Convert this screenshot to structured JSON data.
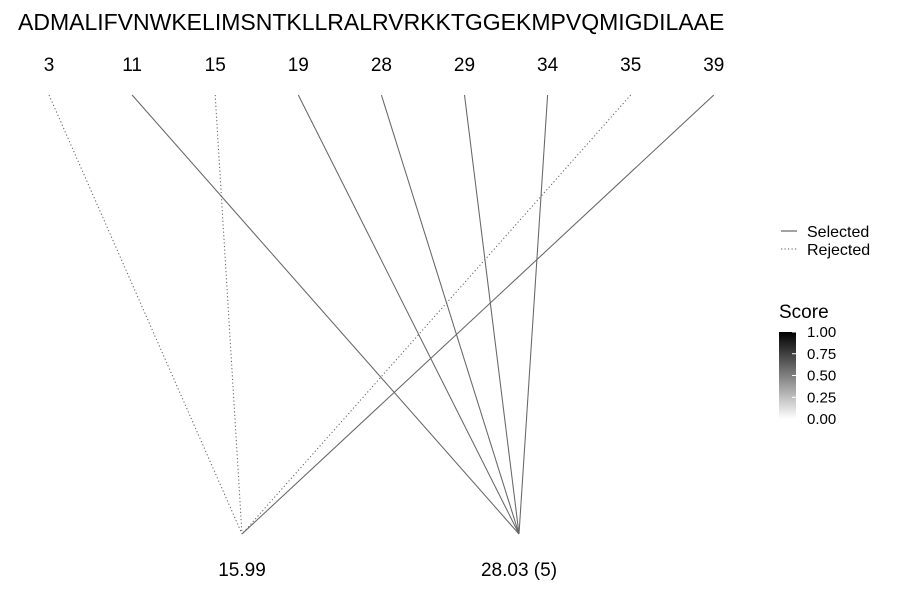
{
  "chart_data": {
    "type": "line",
    "sequence": "ADMALIFVNWKELIMSNTKLLRALRVRKKTGGEKMPVQMIGDILAAE",
    "positions": [
      "3",
      "11",
      "15",
      "19",
      "28",
      "29",
      "34",
      "35",
      "39"
    ],
    "masses": [
      {
        "key": "m1",
        "label": "15.99"
      },
      {
        "key": "m2",
        "label": "28.03 (5)"
      }
    ],
    "links": [
      {
        "position": "3",
        "mass": "m1",
        "status": "rejected"
      },
      {
        "position": "15",
        "mass": "m1",
        "status": "rejected"
      },
      {
        "position": "35",
        "mass": "m1",
        "status": "rejected"
      },
      {
        "position": "39",
        "mass": "m1",
        "status": "selected"
      },
      {
        "position": "11",
        "mass": "m2",
        "status": "selected"
      },
      {
        "position": "19",
        "mass": "m2",
        "status": "selected"
      },
      {
        "position": "28",
        "mass": "m2",
        "status": "selected"
      },
      {
        "position": "29",
        "mass": "m2",
        "status": "selected"
      },
      {
        "position": "34",
        "mass": "m2",
        "status": "selected"
      }
    ],
    "legend": {
      "selected_label": "Selected",
      "rejected_label": "Rejected"
    },
    "colorbar": {
      "title": "Score",
      "ticks": [
        "1.00",
        "0.75",
        "0.50",
        "0.25",
        "0.00"
      ],
      "range": [
        0,
        1
      ],
      "low_color": "#ffffff",
      "high_color": "#000000"
    },
    "line_color": "#666666"
  }
}
